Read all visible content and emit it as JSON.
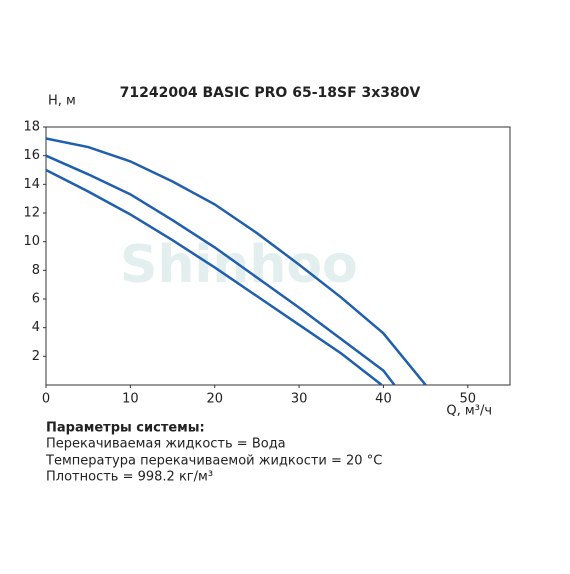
{
  "chart_data": {
    "type": "line",
    "title": "71242004 BASIC PRO 65-18SF 3x380V",
    "y_label": "Н, м",
    "x_label": "Q, м³/ч",
    "watermark": "Shinhoo",
    "xlim": [
      0,
      55
    ],
    "ylim": [
      0,
      18
    ],
    "xticks": [
      0,
      10,
      20,
      30,
      40,
      50
    ],
    "yticks": [
      2,
      4,
      6,
      8,
      10,
      12,
      14,
      16,
      18
    ],
    "grid": false,
    "series": [
      {
        "color": "#1f5fae",
        "x": [
          0,
          5,
          10,
          15,
          20,
          25,
          30,
          35,
          40,
          45
        ],
        "values": [
          17.2,
          16.6,
          15.6,
          14.2,
          12.6,
          10.6,
          8.4,
          6.1,
          3.6,
          0
        ]
      },
      {
        "color": "#1f5fae",
        "x": [
          0,
          5,
          10,
          15,
          20,
          25,
          30,
          35,
          40,
          41.3
        ],
        "values": [
          16.0,
          14.7,
          13.3,
          11.5,
          9.6,
          7.5,
          5.4,
          3.2,
          1.0,
          0
        ]
      },
      {
        "color": "#1f5fae",
        "x": [
          0,
          5,
          10,
          15,
          20,
          25,
          30,
          35,
          39.8
        ],
        "values": [
          15.0,
          13.5,
          11.9,
          10.1,
          8.2,
          6.2,
          4.2,
          2.2,
          0
        ]
      }
    ]
  },
  "parameters": {
    "heading": "Параметры системы:",
    "lines": [
      "Перекачиваемая жидкость = Вода",
      "Температура перекачиваемой жидкости = 20 °C",
      "Плотность = 998.2 кг/м³"
    ]
  }
}
